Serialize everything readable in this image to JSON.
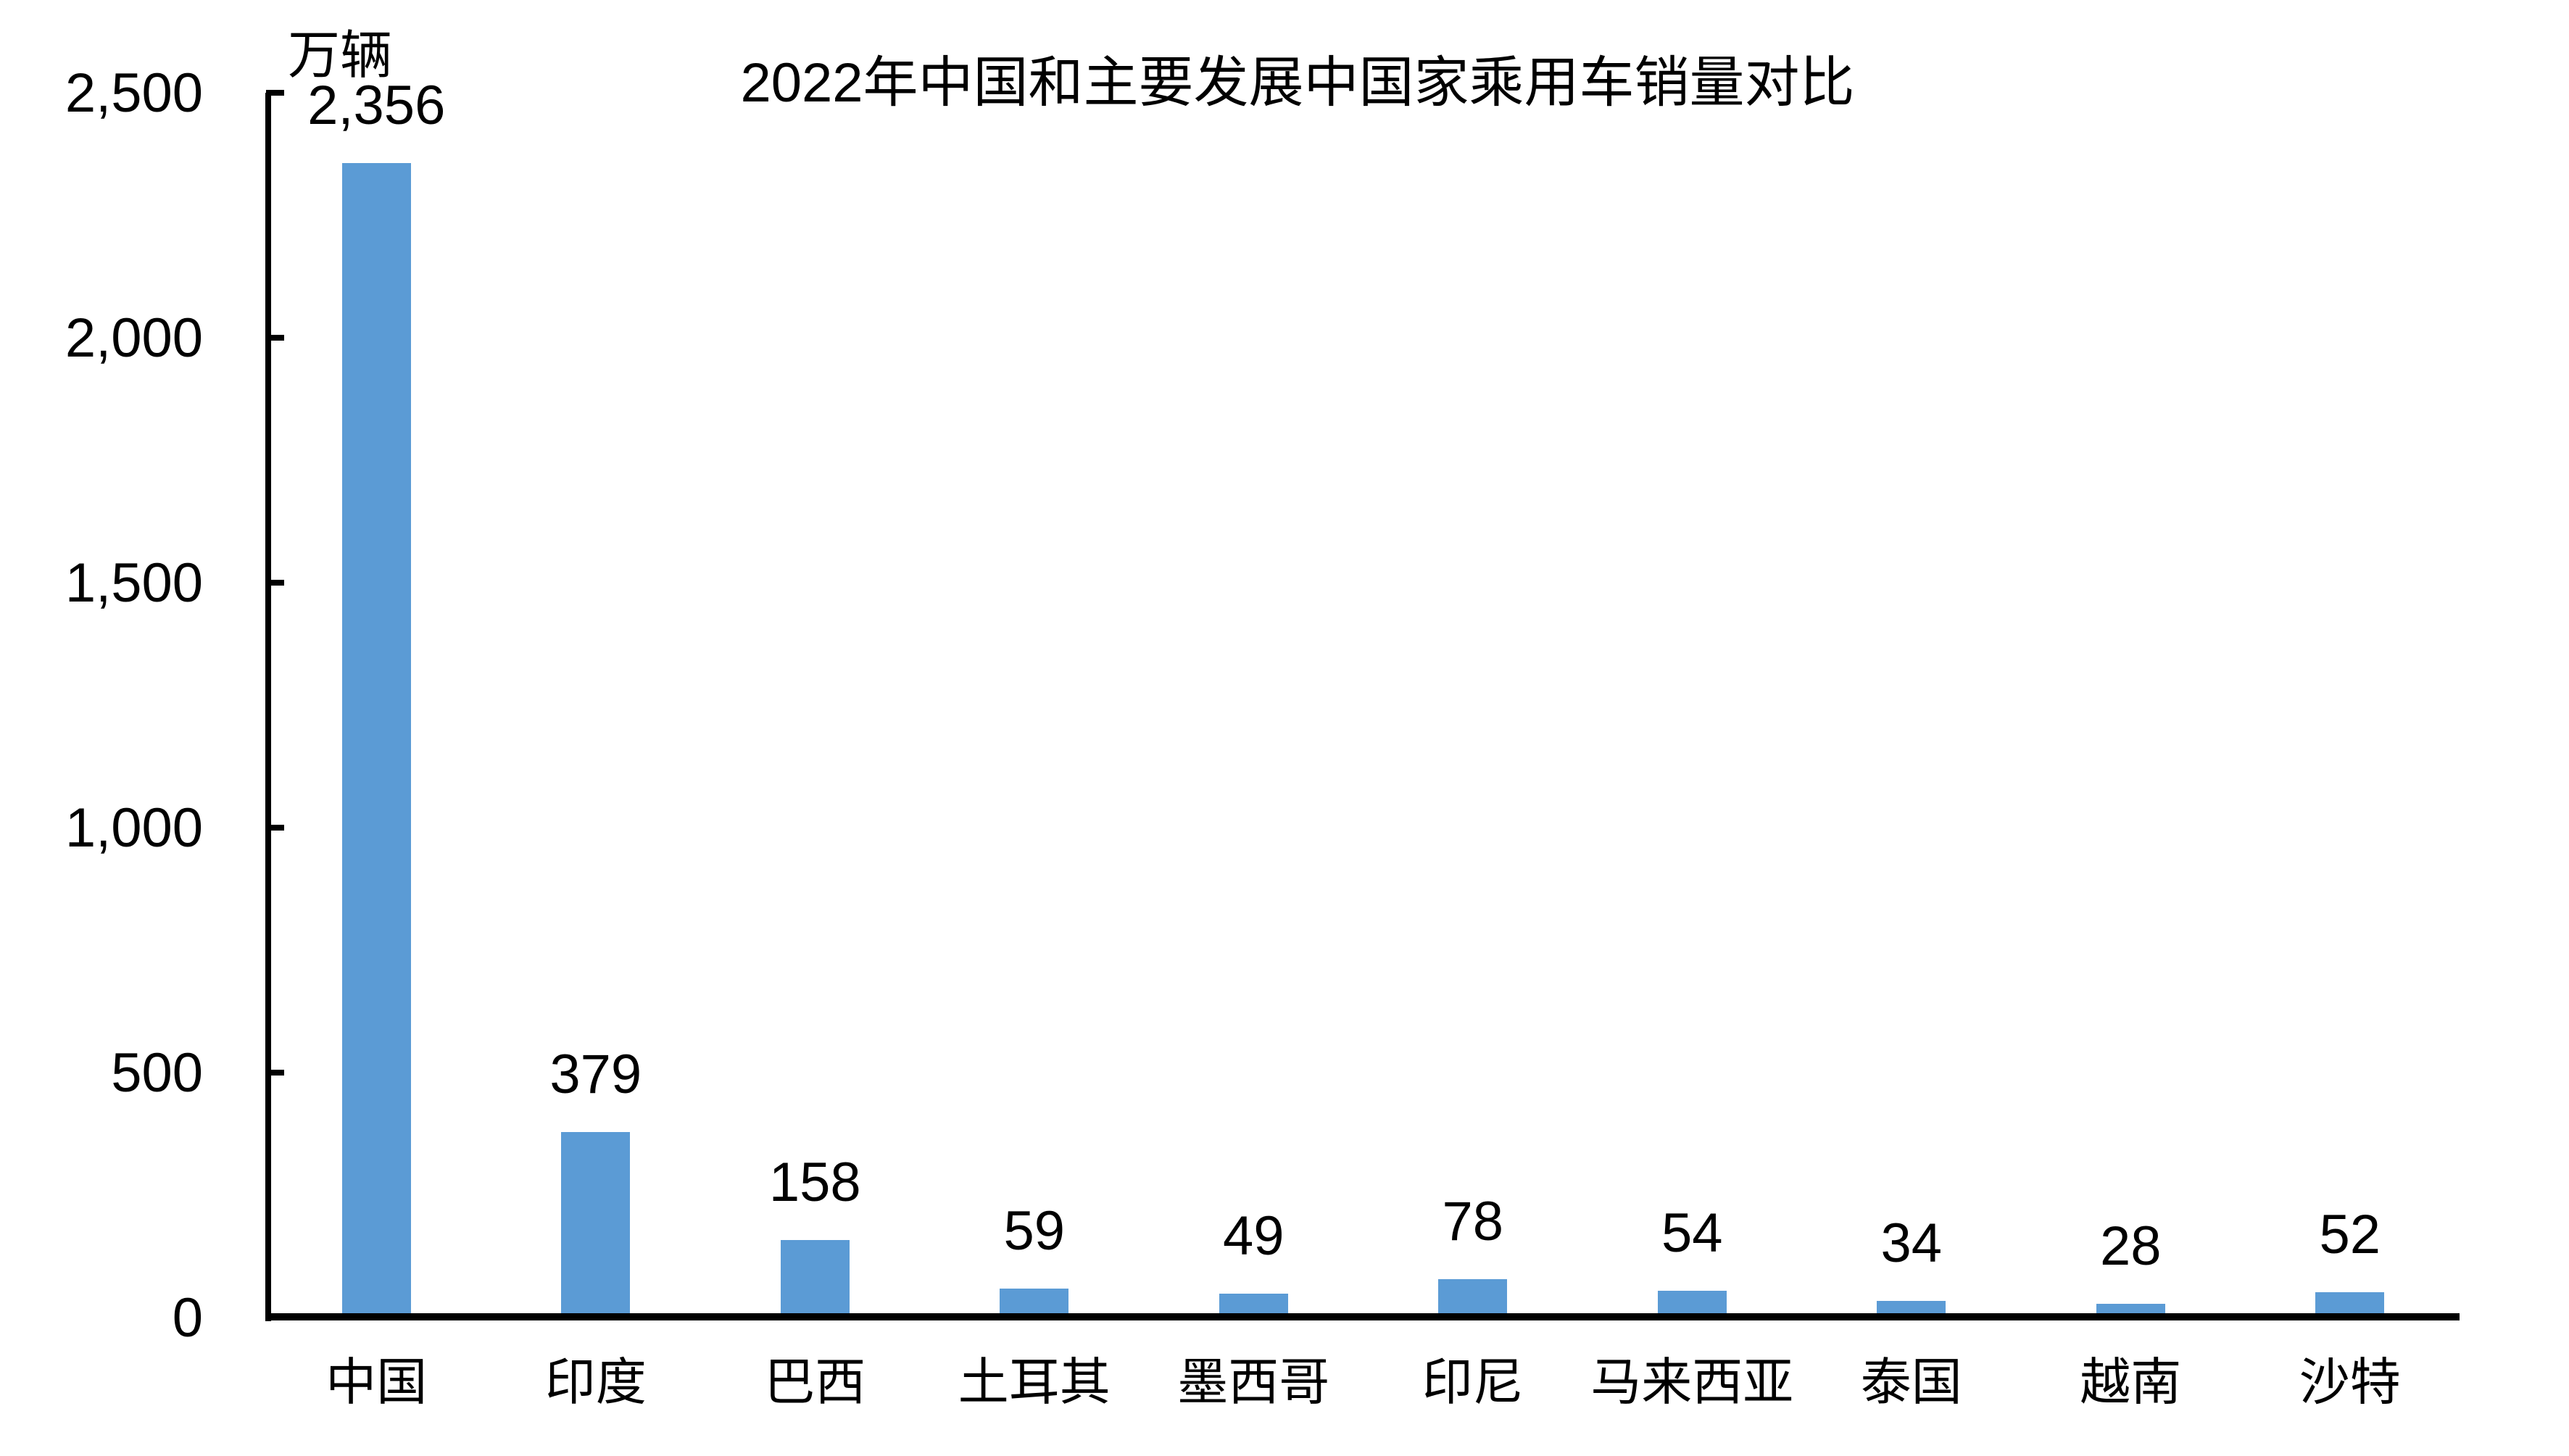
{
  "chart_data": {
    "type": "bar",
    "title": "2022年中国和主要发展中国家乘用车销量对比",
    "unit_label": "万辆",
    "categories": [
      "中国",
      "印度",
      "巴西",
      "土耳其",
      "墨西哥",
      "印尼",
      "马来西亚",
      "泰国",
      "越南",
      "沙特"
    ],
    "values": [
      2356,
      379,
      158,
      59,
      49,
      78,
      54,
      34,
      28,
      52
    ],
    "value_labels": [
      "2,356",
      "379",
      "158",
      "59",
      "49",
      "78",
      "54",
      "34",
      "28",
      "52"
    ],
    "y_axis": {
      "tick_labels": [
        "0",
        "500",
        "1,000",
        "1,500",
        "2,000",
        "2,500"
      ],
      "tick_values": [
        0,
        500,
        1000,
        1500,
        2000,
        2500
      ],
      "range": [
        0,
        2500
      ]
    },
    "xlabel": "",
    "ylabel": "万辆",
    "grid": false,
    "legend": "none",
    "colors": {
      "bar": "#5B9BD5",
      "axis": "#000000",
      "text": "#000000",
      "background": "#FFFFFF"
    }
  }
}
